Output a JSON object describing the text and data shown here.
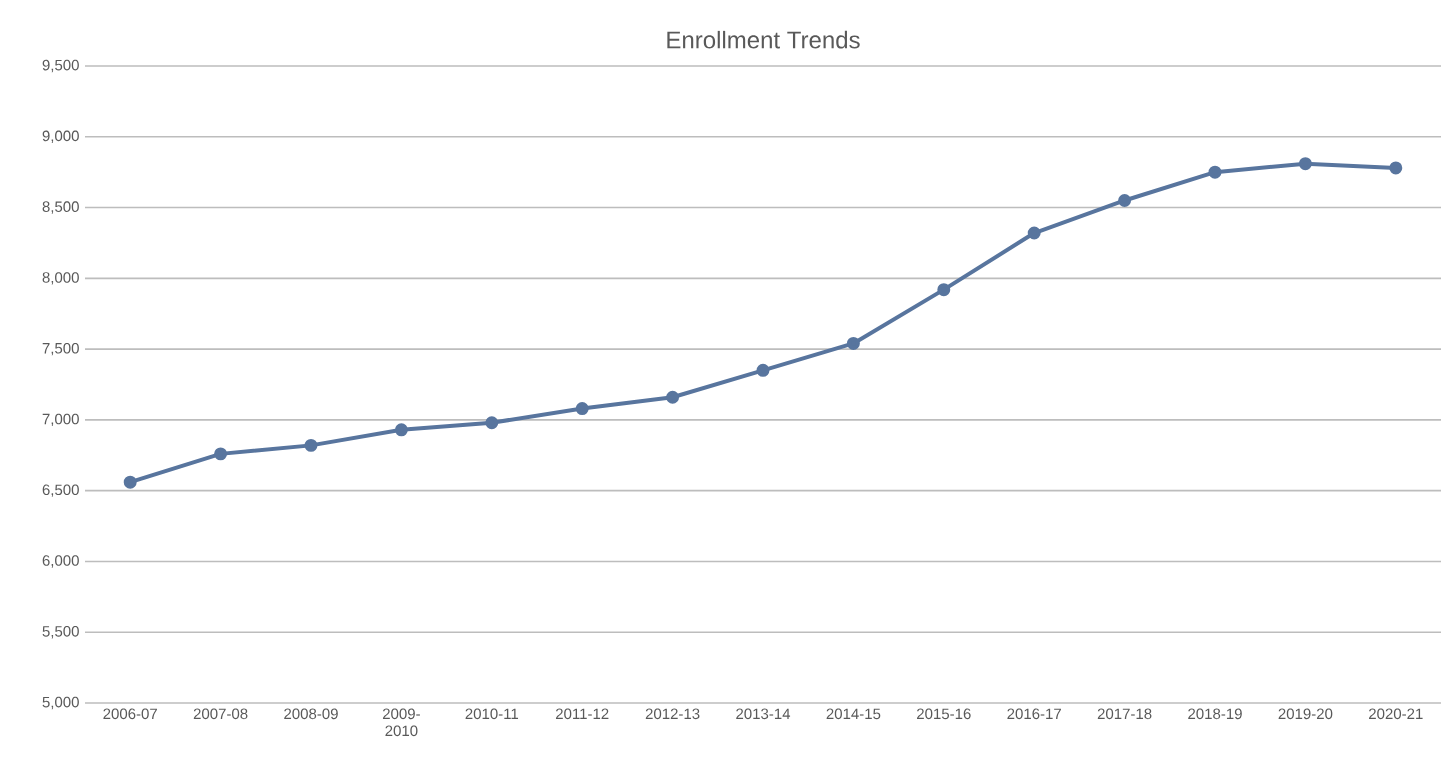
{
  "chart_data": {
    "type": "line",
    "title": "Enrollment Trends",
    "categories": [
      "2006-07",
      "2007-08",
      "2008-09",
      "2009-2010",
      "2010-11",
      "2011-12",
      "2012-13",
      "2013-14",
      "2014-15",
      "2015-16",
      "2016-17",
      "2017-18",
      "2018-19",
      "2019-20",
      "2020-21"
    ],
    "series": [
      {
        "color": "#58759e",
        "values": [
          6560,
          6760,
          6820,
          6930,
          6980,
          7080,
          7160,
          7350,
          7540,
          7920,
          8320,
          8550,
          8750,
          8810,
          8780
        ]
      }
    ],
    "ylim": [
      5000,
      9500
    ],
    "yticks": [
      {
        "value": 5000,
        "label": "5,000"
      },
      {
        "value": 5500,
        "label": "5,500"
      },
      {
        "value": 6000,
        "label": "6,000"
      },
      {
        "value": 6500,
        "label": "6,500"
      },
      {
        "value": 7000,
        "label": "7,000"
      },
      {
        "value": 7500,
        "label": "7,500"
      },
      {
        "value": 8000,
        "label": "8,000"
      },
      {
        "value": 8500,
        "label": "8,500"
      },
      {
        "value": 9000,
        "label": "9,000"
      },
      {
        "value": 9500,
        "label": "9,500"
      }
    ],
    "grid": "y",
    "marker": "circle",
    "line_style": "solid"
  }
}
